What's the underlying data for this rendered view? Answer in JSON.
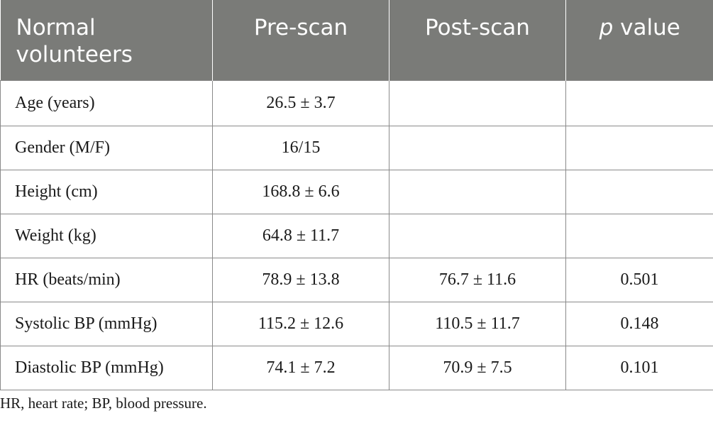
{
  "table": {
    "headers": {
      "col0": "Normal volunteers",
      "col1": "Pre-scan",
      "col2": "Post-scan",
      "col3_italic": "p",
      "col3_rest": " value"
    },
    "rows": [
      {
        "label": "Age (years)",
        "pre": "26.5 ± 3.7",
        "post": "",
        "p": ""
      },
      {
        "label": "Gender (M/F)",
        "pre": "16/15",
        "post": "",
        "p": ""
      },
      {
        "label": "Height (cm)",
        "pre": "168.8 ± 6.6",
        "post": "",
        "p": ""
      },
      {
        "label": "Weight (kg)",
        "pre": "64.8 ± 11.7",
        "post": "",
        "p": ""
      },
      {
        "label": "HR (beats/min)",
        "pre": "78.9 ± 13.8",
        "post": "76.7 ± 11.6",
        "p": "0.501"
      },
      {
        "label": "Systolic BP (mmHg)",
        "pre": "115.2 ± 12.6",
        "post": "110.5 ± 11.7",
        "p": "0.148"
      },
      {
        "label": "Diastolic BP (mmHg)",
        "pre": "74.1 ± 7.2",
        "post": "70.9 ± 7.5",
        "p": "0.101"
      }
    ]
  },
  "footnote": "HR, heart rate; BP, blood pressure.",
  "colors": {
    "header_bg": "#7a7b78",
    "header_text": "#ffffff",
    "border": "#8a8a8a"
  }
}
